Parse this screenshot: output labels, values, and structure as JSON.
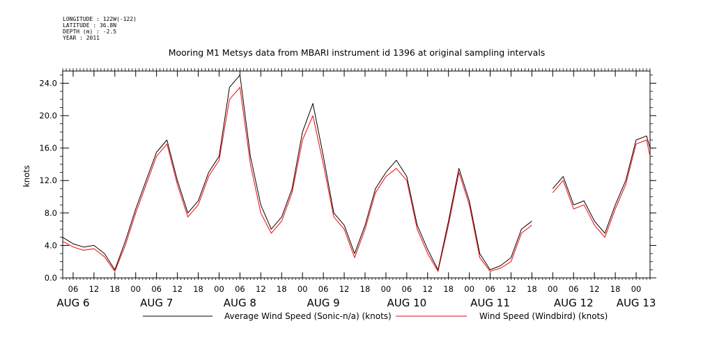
{
  "meta": {
    "longitude": "LONGITUDE : 122W(-122)",
    "latitude": "LATITUDE : 36.8N",
    "depth": "DEPTH (m) : -2.5",
    "year": "YEAR : 2011"
  },
  "colors": {
    "avg": "#000000",
    "windbird": "#ff0000",
    "axis": "#000000"
  },
  "chart_data": {
    "type": "line",
    "title": "Mooring M1 Metsys data from MBARI instrument id 1396 at original sampling intervals",
    "ylabel": "knots",
    "xlabel": "",
    "ylim": [
      0,
      25.5
    ],
    "xlim": [
      "2011-08-06 03:00",
      "2011-08-13 04:00"
    ],
    "y_ticks": [
      {
        "value": 0,
        "label": "0.0"
      },
      {
        "value": 4,
        "label": "4.0"
      },
      {
        "value": 8,
        "label": "8.0"
      },
      {
        "value": 12,
        "label": "12.0"
      },
      {
        "value": 16,
        "label": "16.0"
      },
      {
        "value": 20,
        "label": "20.0"
      },
      {
        "value": 24,
        "label": "24.0"
      }
    ],
    "x_ticks": [
      {
        "t": "2011-08-06 06:00",
        "label": "06"
      },
      {
        "t": "2011-08-06 12:00",
        "label": "12"
      },
      {
        "t": "2011-08-06 18:00",
        "label": "18"
      },
      {
        "t": "2011-08-07 00:00",
        "label": "00"
      },
      {
        "t": "2011-08-07 06:00",
        "label": "06"
      },
      {
        "t": "2011-08-07 12:00",
        "label": "12"
      },
      {
        "t": "2011-08-07 18:00",
        "label": "18"
      },
      {
        "t": "2011-08-08 00:00",
        "label": "00"
      },
      {
        "t": "2011-08-08 06:00",
        "label": "06"
      },
      {
        "t": "2011-08-08 12:00",
        "label": "12"
      },
      {
        "t": "2011-08-08 18:00",
        "label": "18"
      },
      {
        "t": "2011-08-09 00:00",
        "label": "00"
      },
      {
        "t": "2011-08-09 06:00",
        "label": "06"
      },
      {
        "t": "2011-08-09 12:00",
        "label": "12"
      },
      {
        "t": "2011-08-09 18:00",
        "label": "18"
      },
      {
        "t": "2011-08-10 00:00",
        "label": "00"
      },
      {
        "t": "2011-08-10 06:00",
        "label": "06"
      },
      {
        "t": "2011-08-10 12:00",
        "label": "12"
      },
      {
        "t": "2011-08-10 18:00",
        "label": "18"
      },
      {
        "t": "2011-08-11 00:00",
        "label": "00"
      },
      {
        "t": "2011-08-11 06:00",
        "label": "06"
      },
      {
        "t": "2011-08-11 12:00",
        "label": "12"
      },
      {
        "t": "2011-08-11 18:00",
        "label": "18"
      },
      {
        "t": "2011-08-12 00:00",
        "label": "00"
      },
      {
        "t": "2011-08-12 06:00",
        "label": "06"
      },
      {
        "t": "2011-08-12 12:00",
        "label": "12"
      },
      {
        "t": "2011-08-12 18:00",
        "label": "18"
      },
      {
        "t": "2011-08-13 00:00",
        "label": "00"
      }
    ],
    "day_labels": [
      {
        "t": "2011-08-06 06:00",
        "label": "AUG  6"
      },
      {
        "t": "2011-08-07 06:00",
        "label": "AUG  7"
      },
      {
        "t": "2011-08-08 06:00",
        "label": "AUG  8"
      },
      {
        "t": "2011-08-09 06:00",
        "label": "AUG  9"
      },
      {
        "t": "2011-08-10 06:00",
        "label": "AUG 10"
      },
      {
        "t": "2011-08-11 06:00",
        "label": "AUG 11"
      },
      {
        "t": "2011-08-12 06:00",
        "label": "AUG 12"
      },
      {
        "t": "2011-08-13 00:00",
        "label": "AUG 13"
      }
    ],
    "x": [
      "2011-08-06 03:00",
      "2011-08-06 06:00",
      "2011-08-06 09:00",
      "2011-08-06 12:00",
      "2011-08-06 15:00",
      "2011-08-06 18:00",
      "2011-08-06 21:00",
      "2011-08-07 00:00",
      "2011-08-07 03:00",
      "2011-08-07 06:00",
      "2011-08-07 09:00",
      "2011-08-07 12:00",
      "2011-08-07 15:00",
      "2011-08-07 18:00",
      "2011-08-07 21:00",
      "2011-08-08 00:00",
      "2011-08-08 03:00",
      "2011-08-08 06:00",
      "2011-08-08 09:00",
      "2011-08-08 12:00",
      "2011-08-08 15:00",
      "2011-08-08 18:00",
      "2011-08-08 21:00",
      "2011-08-09 00:00",
      "2011-08-09 03:00",
      "2011-08-09 06:00",
      "2011-08-09 09:00",
      "2011-08-09 12:00",
      "2011-08-09 15:00",
      "2011-08-09 18:00",
      "2011-08-09 21:00",
      "2011-08-10 00:00",
      "2011-08-10 03:00",
      "2011-08-10 06:00",
      "2011-08-10 09:00",
      "2011-08-10 12:00",
      "2011-08-10 15:00",
      "2011-08-10 18:00",
      "2011-08-10 21:00",
      "2011-08-11 00:00",
      "2011-08-11 03:00",
      "2011-08-11 06:00",
      "2011-08-11 09:00",
      "2011-08-11 12:00",
      "2011-08-11 15:00",
      "2011-08-11 18:00",
      "2011-08-11 21:00",
      "2011-08-12 00:00",
      "2011-08-12 03:00",
      "2011-08-12 06:00",
      "2011-08-12 09:00",
      "2011-08-12 12:00",
      "2011-08-12 15:00",
      "2011-08-12 18:00",
      "2011-08-12 21:00",
      "2011-08-13 00:00",
      "2011-08-13 03:00",
      "2011-08-13 04:00"
    ],
    "series": [
      {
        "name": "Average Wind Speed (Sonic-n/a) (knots)",
        "color": "#000000",
        "values": [
          5.0,
          4.2,
          3.8,
          4.0,
          3.0,
          1.0,
          4.5,
          8.5,
          12.0,
          15.5,
          17.0,
          12.0,
          8.0,
          9.5,
          13.0,
          15.0,
          23.5,
          25.0,
          15.0,
          9.0,
          6.0,
          7.5,
          11.0,
          18.0,
          21.5,
          15.0,
          8.0,
          6.5,
          3.0,
          6.5,
          11.0,
          13.0,
          14.5,
          12.5,
          6.5,
          3.5,
          1.0,
          7.0,
          13.5,
          9.5,
          3.0,
          1.0,
          1.5,
          2.5,
          6.0,
          7.0,
          null,
          11.0,
          12.5,
          9.0,
          9.5,
          7.0,
          5.5,
          9.0,
          12.0,
          17.0,
          17.5,
          16.0
        ]
      },
      {
        "name": "Wind Speed (Windbird) (knots)",
        "color": "#ff0000",
        "values": [
          4.5,
          3.8,
          3.4,
          3.6,
          2.6,
          0.8,
          4.0,
          8.0,
          11.5,
          15.0,
          16.5,
          11.5,
          7.5,
          9.0,
          12.5,
          14.5,
          22.0,
          23.5,
          14.0,
          8.0,
          5.5,
          7.0,
          10.5,
          17.0,
          20.0,
          14.0,
          7.5,
          6.0,
          2.5,
          6.0,
          10.5,
          12.5,
          13.5,
          12.0,
          6.0,
          3.0,
          0.8,
          6.5,
          13.0,
          9.0,
          2.5,
          0.8,
          1.2,
          2.0,
          5.5,
          6.5,
          null,
          10.5,
          12.0,
          8.5,
          9.0,
          6.5,
          5.0,
          8.5,
          11.5,
          16.5,
          17.0,
          15.0
        ]
      }
    ],
    "legend": "bottom-center"
  }
}
